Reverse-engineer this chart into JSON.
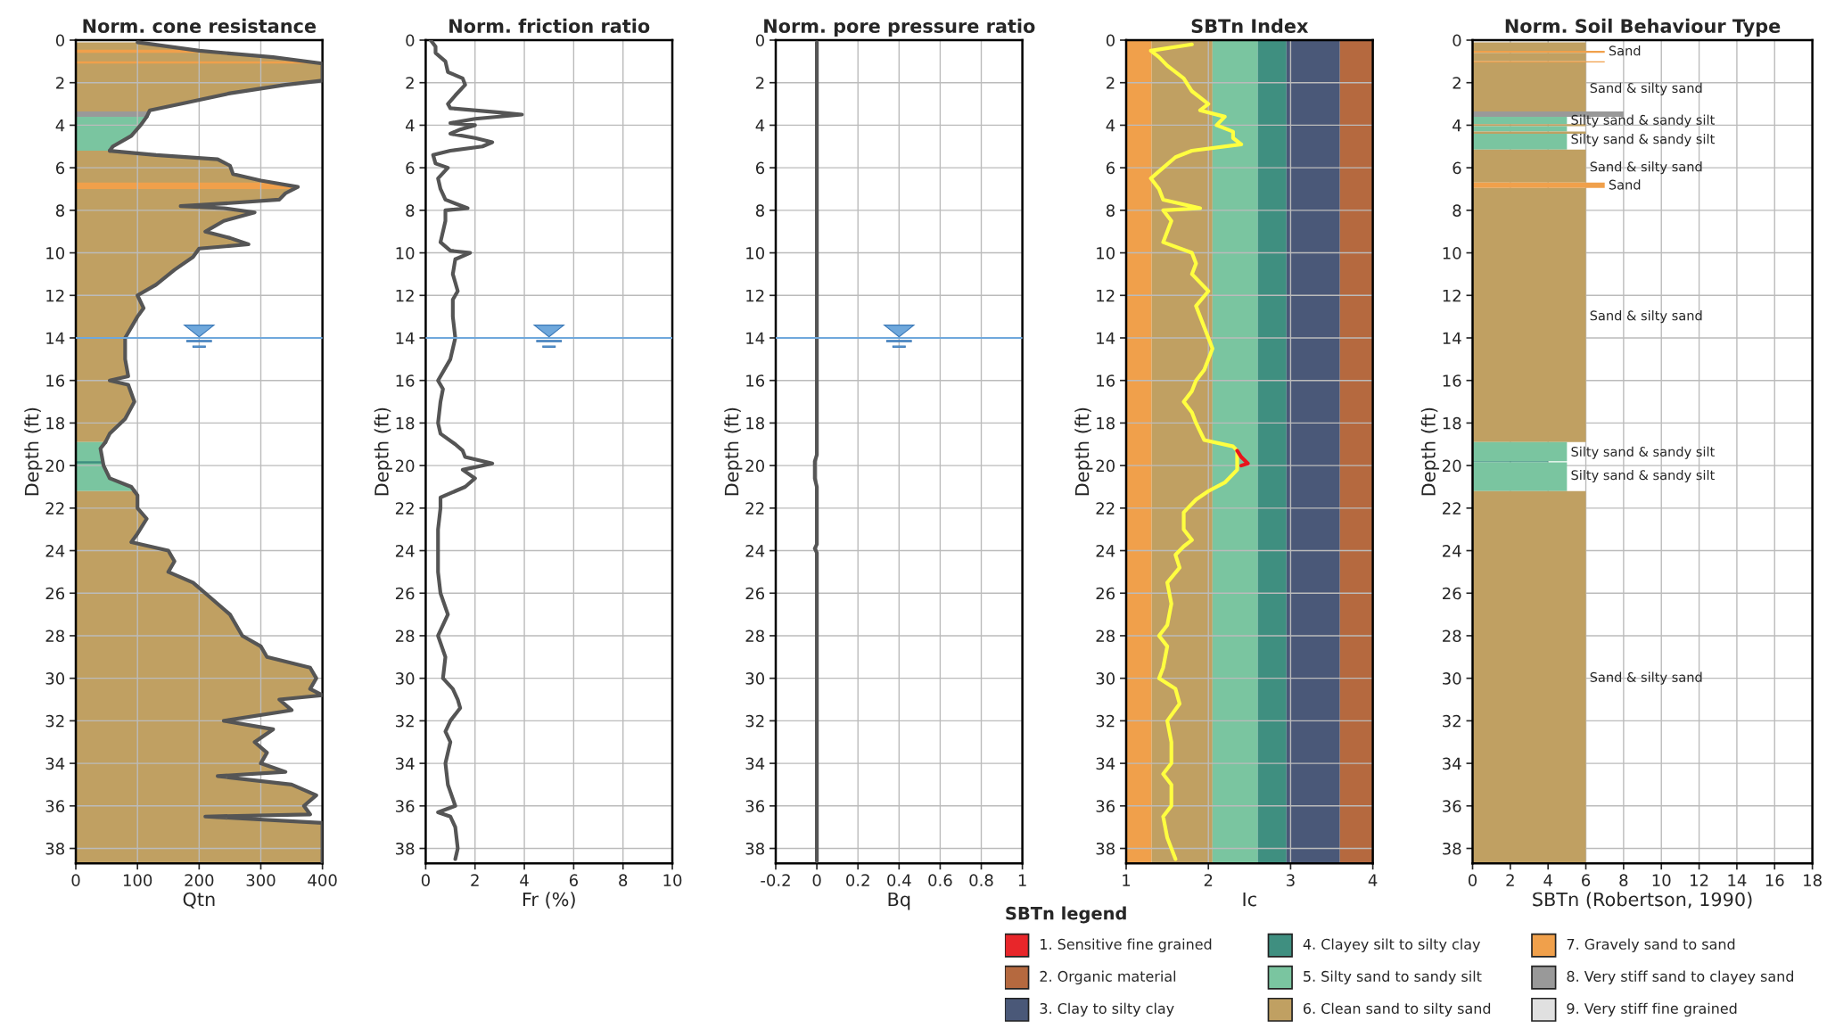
{
  "chart_data": [
    {
      "type": "area",
      "title": "Norm. cone resistance",
      "xlabel": "Qtn",
      "ylabel": "Depth (ft)",
      "xlim": [
        0,
        400
      ],
      "xticks": [
        0,
        100,
        200,
        300,
        400
      ],
      "ylim": [
        38.7,
        0
      ],
      "yticks": [
        0,
        2,
        4,
        6,
        8,
        10,
        12,
        14,
        16,
        18,
        20,
        22,
        24,
        26,
        28,
        30,
        32,
        34,
        36,
        38
      ],
      "grid": true,
      "orientation": "horizontal",
      "series": [
        {
          "color": "#c0a062",
          "x": [
            0.1,
            0.5,
            0.8,
            1.1,
            1.9,
            2.1,
            2.5,
            3.0,
            3.3,
            3.6
          ],
          "values": [
            100,
            200,
            320,
            400,
            400,
            340,
            250,
            170,
            120,
            115
          ]
        },
        {
          "color": "#7ac5a0",
          "x": [
            3.6,
            4.0,
            4.5,
            5.0,
            5.2
          ],
          "values": [
            115,
            105,
            90,
            60,
            55
          ]
        },
        {
          "color": "#c0a062",
          "x": [
            5.2,
            5.4,
            5.6,
            5.9,
            6.3,
            6.6,
            6.9,
            7.2,
            7.5,
            7.7,
            7.8,
            7.9,
            8.1,
            8.5,
            9.0,
            9.3,
            9.6,
            9.8,
            10.2,
            10.8,
            11.5,
            12.0,
            12.6,
            13.0,
            14.0,
            15.0,
            15.8,
            16.0,
            16.2,
            17.0,
            17.8,
            18.5,
            18.9
          ],
          "values": [
            55,
            130,
            230,
            250,
            255,
            300,
            360,
            340,
            330,
            230,
            170,
            240,
            290,
            240,
            210,
            250,
            280,
            200,
            190,
            160,
            130,
            100,
            110,
            100,
            80,
            80,
            85,
            55,
            85,
            95,
            80,
            55,
            48
          ]
        },
        {
          "color": "#7ac5a0",
          "x": [
            18.9,
            19.2,
            20.0,
            20.6,
            21.0,
            21.2
          ],
          "values": [
            48,
            40,
            45,
            55,
            90,
            95
          ]
        },
        {
          "color": "#c0a062",
          "x": [
            21.2,
            21.4,
            22.0,
            22.5,
            23.2,
            23.6,
            24.0,
            24.5,
            25.0,
            25.5,
            26.0,
            27.0,
            28.0,
            28.5,
            29.0,
            29.5,
            30.0,
            30.5,
            30.8,
            31.0,
            31.5,
            32.0,
            32.4,
            33.0,
            33.5,
            34.0,
            34.4,
            34.6,
            35.0,
            35.5,
            36.0,
            36.4,
            36.5,
            36.8,
            38.7
          ],
          "values": [
            95,
            100,
            100,
            115,
            100,
            90,
            150,
            160,
            150,
            190,
            210,
            250,
            270,
            300,
            310,
            380,
            390,
            380,
            400,
            330,
            350,
            240,
            320,
            290,
            310,
            300,
            340,
            230,
            350,
            390,
            370,
            380,
            210,
            400,
            400
          ]
        }
      ],
      "bands": [
        {
          "axis": "y",
          "from": 0.45,
          "to": 0.6,
          "color": "#f0a04b"
        },
        {
          "axis": "y",
          "from": 1.0,
          "to": 1.1,
          "color": "#f0a04b"
        },
        {
          "axis": "y",
          "from": 3.35,
          "to": 3.6,
          "color": "#999999"
        },
        {
          "axis": "y",
          "from": 6.7,
          "to": 7.0,
          "color": "#f0a04b"
        },
        {
          "axis": "y",
          "from": 19.8,
          "to": 19.9,
          "color": "#3f8f80"
        }
      ],
      "ref_lines": [
        {
          "axis": "y",
          "value": 14,
          "color": "#6fa8dc"
        }
      ]
    },
    {
      "type": "line",
      "title": "Norm. friction ratio",
      "xlabel": "Fr (%)",
      "ylabel": "Depth (ft)",
      "xlim": [
        0,
        10
      ],
      "xticks": [
        0,
        2,
        4,
        6,
        8,
        10
      ],
      "ylim": [
        38.7,
        0
      ],
      "yticks": [
        0,
        2,
        4,
        6,
        8,
        10,
        12,
        14,
        16,
        18,
        20,
        22,
        24,
        26,
        28,
        30,
        32,
        34,
        36,
        38
      ],
      "grid": true,
      "series": [
        {
          "color": "#555555",
          "x": [
            0.2,
            0.4,
            0.4,
            0.8,
            0.9,
            1.5,
            1.6,
            1.2,
            0.9,
            1.0,
            3.0,
            3.9,
            2.0,
            1.0,
            2.0,
            1.4,
            1.0,
            2.0,
            2.7,
            2.3,
            1.0,
            0.3,
            0.4,
            0.9,
            0.5,
            0.6,
            0.8,
            1.7,
            0.8,
            0.8,
            0.6,
            1.0,
            1.8,
            1.2,
            1.1,
            1.3,
            1.1,
            1.1,
            1.2,
            1.0,
            0.5,
            0.7,
            0.6,
            0.5,
            0.6,
            1.2,
            1.5,
            1.6,
            2.7,
            1.5,
            2.0,
            1.6,
            0.6,
            0.6,
            0.5,
            0.5,
            0.5,
            0.6,
            0.9,
            0.5,
            0.8,
            0.7,
            1.1,
            1.3,
            1.4,
            1.0,
            0.8,
            1.0,
            0.8,
            0.9,
            1.2,
            0.5,
            1.0,
            1.2,
            1.3,
            1.2
          ],
          "values": [
            0.0,
            0.3,
            0.6,
            1.0,
            1.5,
            1.8,
            2.1,
            2.6,
            3.0,
            3.2,
            3.4,
            3.5,
            3.7,
            3.9,
            4.0,
            4.2,
            4.4,
            4.6,
            4.8,
            5.0,
            5.2,
            5.4,
            5.8,
            6.0,
            6.5,
            7.0,
            7.5,
            7.9,
            8.0,
            8.5,
            9.5,
            9.9,
            10.0,
            10.3,
            11.0,
            11.8,
            12.2,
            13.0,
            14.0,
            15.0,
            16.0,
            16.4,
            17.0,
            18.0,
            18.5,
            19.0,
            19.3,
            19.6,
            19.9,
            20.2,
            20.6,
            21.0,
            21.5,
            22.0,
            23.0,
            24.0,
            25.0,
            26.0,
            27.0,
            28.0,
            29.0,
            30.0,
            30.5,
            31.0,
            31.4,
            32.0,
            32.5,
            33.0,
            34.0,
            35.0,
            36.0,
            36.3,
            36.5,
            37.0,
            38.0,
            38.5
          ]
        }
      ],
      "ref_lines": [
        {
          "axis": "y",
          "value": 14,
          "color": "#6fa8dc"
        }
      ]
    },
    {
      "type": "line",
      "title": "Norm. pore pressure ratio",
      "xlabel": "Bq",
      "ylabel": "Depth (ft)",
      "xlim": [
        -0.2,
        1
      ],
      "xticks": [
        -0.2,
        0,
        0.2,
        0.4,
        0.6,
        0.8,
        1
      ],
      "ylim": [
        38.7,
        0
      ],
      "yticks": [
        0,
        2,
        4,
        6,
        8,
        10,
        12,
        14,
        16,
        18,
        20,
        22,
        24,
        26,
        28,
        30,
        32,
        34,
        36,
        38
      ],
      "grid": true,
      "series": [
        {
          "color": "#555555",
          "x": [
            0,
            0,
            0,
            -0.01,
            -0.01,
            0,
            0,
            -0.01,
            0,
            0
          ],
          "values": [
            0.1,
            19.2,
            19.5,
            19.8,
            20.6,
            21.0,
            23.7,
            23.9,
            24.1,
            38.6
          ]
        }
      ],
      "ref_lines": [
        {
          "axis": "y",
          "value": 14,
          "color": "#6fa8dc"
        }
      ]
    },
    {
      "type": "line",
      "title": "SBTn Index",
      "xlabel": "Ic",
      "ylabel": "Depth (ft)",
      "xlim": [
        1,
        4
      ],
      "xticks": [
        1,
        2,
        3,
        4
      ],
      "ylim": [
        38.7,
        0
      ],
      "yticks": [
        0,
        2,
        4,
        6,
        8,
        10,
        12,
        14,
        16,
        18,
        20,
        22,
        24,
        26,
        28,
        30,
        32,
        34,
        36,
        38
      ],
      "grid": true,
      "series": [
        {
          "color": "#ffff40",
          "x": [
            1.8,
            1.3,
            1.4,
            1.5,
            1.7,
            1.8,
            2.0,
            1.9,
            2.2,
            2.1,
            2.3,
            2.3,
            2.4,
            1.8,
            1.6,
            1.45,
            1.3,
            1.4,
            1.45,
            1.9,
            1.45,
            1.55,
            1.5,
            1.45,
            1.8,
            1.85,
            1.8,
            2.0,
            1.85,
            1.95,
            2.05,
            1.95,
            1.85,
            1.8,
            1.7,
            1.8,
            1.85,
            1.95,
            2.3,
            2.35,
            2.35,
            2.35,
            2.2,
            2.0,
            1.85,
            1.7,
            1.7,
            1.8,
            1.7,
            1.6,
            1.65,
            1.5,
            1.55,
            1.5,
            1.4,
            1.5,
            1.45,
            1.4,
            1.6,
            1.65,
            1.5,
            1.55,
            1.55,
            1.45,
            1.55,
            1.55,
            1.45,
            1.5,
            1.6
          ],
          "values": [
            0.2,
            0.5,
            0.8,
            1.2,
            1.8,
            2.4,
            3.0,
            3.3,
            3.6,
            4.0,
            4.3,
            4.6,
            4.9,
            5.2,
            5.5,
            6.0,
            6.5,
            7.0,
            7.5,
            7.9,
            8.0,
            8.5,
            9.0,
            9.5,
            10.0,
            10.5,
            11.0,
            11.8,
            12.5,
            13.5,
            14.5,
            15.5,
            16.0,
            16.5,
            17.0,
            17.5,
            18.0,
            18.8,
            19.1,
            19.3,
            19.9,
            20.2,
            20.8,
            21.2,
            21.6,
            22.2,
            23.0,
            23.5,
            23.8,
            24.2,
            24.8,
            25.5,
            26.5,
            27.5,
            28.0,
            28.5,
            29.5,
            30.0,
            30.5,
            31.2,
            32.0,
            33.0,
            34.0,
            34.5,
            35.0,
            36.0,
            36.5,
            37.5,
            38.5
          ]
        },
        {
          "color": "#e8141c",
          "x": [
            2.35,
            2.4,
            2.48,
            2.4
          ],
          "values": [
            19.3,
            19.6,
            19.9,
            20.0
          ]
        }
      ],
      "bands": [
        {
          "axis": "x",
          "from": 1,
          "to": 1.31,
          "color": "#f0a04b"
        },
        {
          "axis": "x",
          "from": 1.31,
          "to": 2.05,
          "color": "#c0a062"
        },
        {
          "axis": "x",
          "from": 2.05,
          "to": 2.6,
          "color": "#7ac5a0"
        },
        {
          "axis": "x",
          "from": 2.6,
          "to": 2.95,
          "color": "#3f8f80"
        },
        {
          "axis": "x",
          "from": 2.95,
          "to": 3.6,
          "color": "#4a5878"
        },
        {
          "axis": "x",
          "from": 3.6,
          "to": 4,
          "color": "#b5693f"
        }
      ]
    },
    {
      "type": "histogram",
      "orientation": "horizontal",
      "title": "Norm. Soil Behaviour Type",
      "xlabel": "SBTn (Robertson, 1990)",
      "ylabel": "Depth (ft)",
      "xlim": [
        0,
        18
      ],
      "xticks": [
        0,
        2,
        4,
        6,
        8,
        10,
        12,
        14,
        16,
        18
      ],
      "ylim": [
        38.7,
        0
      ],
      "yticks": [
        0,
        2,
        4,
        6,
        8,
        10,
        12,
        14,
        16,
        18,
        20,
        22,
        24,
        26,
        28,
        30,
        32,
        34,
        36,
        38
      ],
      "grid": true,
      "bins": [
        0.1,
        0.5,
        0.6,
        1.0,
        1.05,
        3.35,
        3.6,
        3.95,
        4.05,
        4.3,
        4.4,
        5.15,
        6.7,
        6.95,
        18.9,
        19.8,
        19.85,
        21.2,
        38.7
      ],
      "values": [
        6,
        7,
        6,
        7,
        6,
        8,
        5,
        6,
        5,
        6,
        5,
        6,
        7,
        6,
        5,
        4,
        5,
        6
      ],
      "colors": [
        "#c0a062",
        "#f0a04b",
        "#c0a062",
        "#f0a04b",
        "#c0a062",
        "#999999",
        "#7ac5a0",
        "#c0a062",
        "#7ac5a0",
        "#c0a062",
        "#7ac5a0",
        "#c0a062",
        "#f0a04b",
        "#c0a062",
        "#7ac5a0",
        "#3f8f80",
        "#7ac5a0",
        "#c0a062"
      ],
      "annotations": [
        {
          "text": "Sand",
          "x": 7,
          "y": 0.55
        },
        {
          "text": "Sand & silty sand",
          "x": 6,
          "y": 2.3
        },
        {
          "text": "Silty sand & sandy silt",
          "x": 5,
          "y": 3.8
        },
        {
          "text": "Silty sand & sandy silt",
          "x": 5,
          "y": 4.7
        },
        {
          "text": "Sand & silty sand",
          "x": 6,
          "y": 6.0
        },
        {
          "text": "Sand",
          "x": 7,
          "y": 6.85
        },
        {
          "text": "Sand & silty sand",
          "x": 6,
          "y": 13.0
        },
        {
          "text": "Silty sand & sandy silt",
          "x": 5,
          "y": 19.4
        },
        {
          "text": "Silty sand & sandy silt",
          "x": 5,
          "y": 20.5
        },
        {
          "text": "Sand & silty sand",
          "x": 6,
          "y": 30.0
        }
      ]
    },
    {
      "type": "other",
      "title": "SBTn legend",
      "categories": [
        "1. Sensitive fine grained",
        "2. Organic material",
        "3. Clay to silty clay",
        "4. Clayey silt to silty clay",
        "5. Silty sand to sandy silt",
        "6. Clean sand to silty sand",
        "7. Gravely sand to sand",
        "8. Very stiff sand to clayey sand",
        "9. Very stiff fine grained"
      ],
      "colors": [
        "#e8262a",
        "#b5693f",
        "#4a5878",
        "#3f8f80",
        "#7ac5a0",
        "#c0a062",
        "#f0a04b",
        "#999999",
        "#e0e0e0"
      ]
    }
  ]
}
